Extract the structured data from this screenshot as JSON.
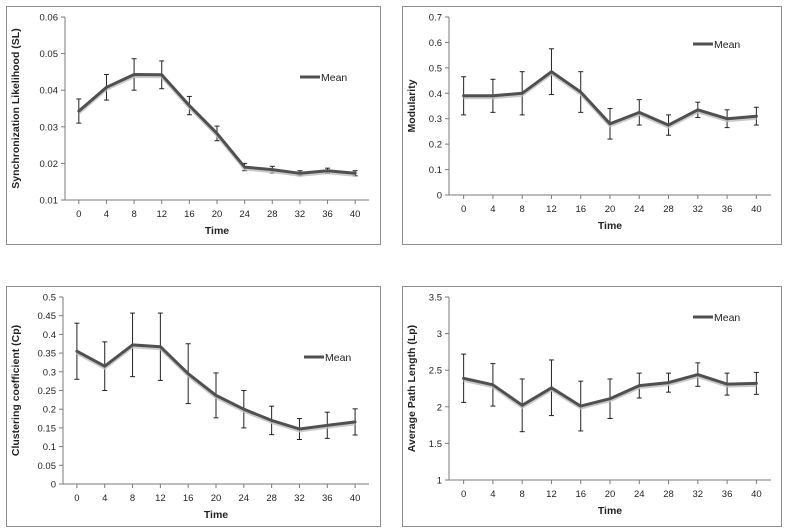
{
  "chart_data": [
    {
      "type": "line",
      "title": "",
      "xlabel": "Time",
      "ylabel": "Synchronization Likelihood (SL)",
      "x": [
        0,
        4,
        8,
        12,
        16,
        20,
        24,
        28,
        32,
        36,
        40
      ],
      "xticks": [
        "0",
        "4",
        "8",
        "12",
        "16",
        "20",
        "24",
        "28",
        "32",
        "36",
        "40"
      ],
      "ylim": [
        0.01,
        0.06
      ],
      "yticks": [
        "0.01",
        "0.02",
        "0.03",
        "0.04",
        "0.05",
        "0.06"
      ],
      "series": [
        {
          "name": "Mean",
          "values": [
            0.0343,
            0.0408,
            0.0443,
            0.0442,
            0.0358,
            0.0282,
            0.019,
            0.0183,
            0.0173,
            0.018,
            0.0173
          ],
          "errors": [
            0.0033,
            0.0035,
            0.0043,
            0.0038,
            0.0025,
            0.002,
            0.001,
            0.0009,
            0.0007,
            0.0007,
            0.0007
          ]
        }
      ],
      "legend": "right"
    },
    {
      "type": "line",
      "title": "",
      "xlabel": "Time",
      "ylabel": "Modularity",
      "x": [
        0,
        4,
        8,
        12,
        16,
        20,
        24,
        28,
        32,
        36,
        40
      ],
      "xticks": [
        "0",
        "4",
        "8",
        "12",
        "16",
        "20",
        "24",
        "28",
        "32",
        "36",
        "40"
      ],
      "ylim": [
        0,
        0.7
      ],
      "yticks": [
        "0",
        "0.1",
        "0.2",
        "0.3",
        "0.4",
        "0.5",
        "0.6",
        "0.7"
      ],
      "series": [
        {
          "name": "Mean",
          "values": [
            0.39,
            0.39,
            0.4,
            0.485,
            0.405,
            0.28,
            0.325,
            0.275,
            0.335,
            0.3,
            0.31
          ],
          "errors": [
            0.075,
            0.065,
            0.085,
            0.09,
            0.08,
            0.06,
            0.05,
            0.04,
            0.03,
            0.035,
            0.035
          ]
        }
      ],
      "legend": "top-right"
    },
    {
      "type": "line",
      "title": "",
      "xlabel": "Time",
      "ylabel": "Clustering coefficient (Cp)",
      "x": [
        0,
        4,
        8,
        12,
        16,
        20,
        24,
        28,
        32,
        36,
        40
      ],
      "xticks": [
        "0",
        "4",
        "8",
        "12",
        "16",
        "20",
        "24",
        "28",
        "32",
        "36",
        "40"
      ],
      "ylim": [
        0,
        0.5
      ],
      "yticks": [
        "0",
        "0.05",
        "0.1",
        "0.15",
        "0.2",
        "0.25",
        "0.3",
        "0.35",
        "0.4",
        "0.45",
        "0.5"
      ],
      "series": [
        {
          "name": "Mean",
          "values": [
            0.355,
            0.315,
            0.372,
            0.367,
            0.295,
            0.237,
            0.2,
            0.17,
            0.147,
            0.157,
            0.166
          ],
          "errors": [
            0.075,
            0.065,
            0.085,
            0.09,
            0.08,
            0.06,
            0.05,
            0.038,
            0.028,
            0.035,
            0.035
          ]
        }
      ],
      "legend": "right"
    },
    {
      "type": "line",
      "title": "",
      "xlabel": "Time",
      "ylabel": "Average Path Length (Lp)",
      "x": [
        0,
        4,
        8,
        12,
        16,
        20,
        24,
        28,
        32,
        36,
        40
      ],
      "xticks": [
        "0",
        "4",
        "8",
        "12",
        "16",
        "20",
        "24",
        "28",
        "32",
        "36",
        "40"
      ],
      "ylim": [
        1,
        3.5
      ],
      "yticks": [
        "1",
        "1.5",
        "2",
        "2.5",
        "3",
        "3.5"
      ],
      "series": [
        {
          "name": "Mean",
          "values": [
            2.39,
            2.3,
            2.02,
            2.26,
            2.01,
            2.11,
            2.29,
            2.33,
            2.44,
            2.31,
            2.32
          ],
          "errors": [
            0.33,
            0.29,
            0.36,
            0.38,
            0.34,
            0.27,
            0.17,
            0.13,
            0.16,
            0.15,
            0.15
          ]
        }
      ],
      "legend": "top-right"
    }
  ]
}
